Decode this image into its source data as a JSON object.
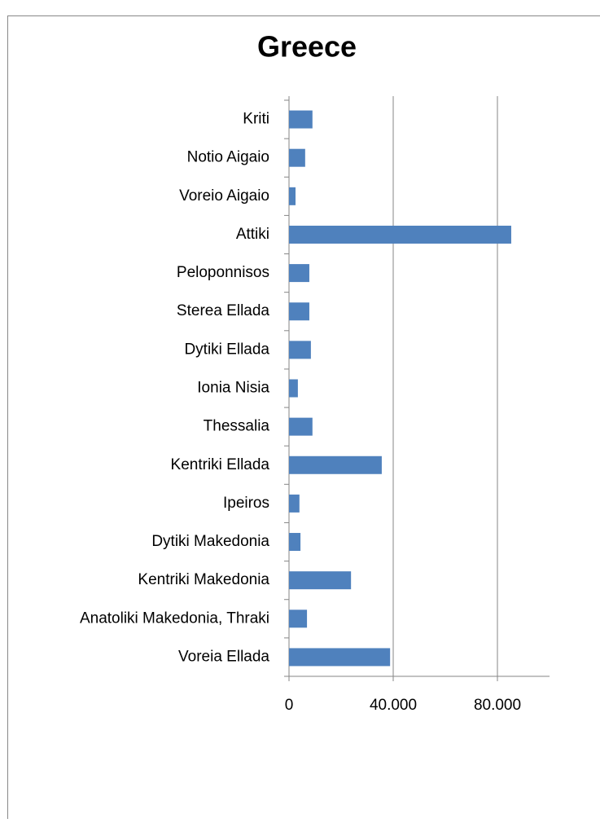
{
  "chart_data": {
    "type": "bar",
    "orientation": "horizontal",
    "title": "Greece",
    "categories": [
      "Kriti",
      "Notio Aigaio",
      "Voreio Aigaio",
      "Attiki",
      "Peloponnisos",
      "Sterea Ellada",
      "Dytiki Ellada",
      "Ionia Nisia",
      "Thessalia",
      "Kentriki Ellada",
      "Ipeiros",
      "Dytiki Makedonia",
      "Kentriki Makedonia",
      "Anatoliki Makedonia, Thraki",
      "Voreia Ellada"
    ],
    "values": [
      9000,
      6200,
      2500,
      85300,
      7800,
      7800,
      8400,
      3400,
      9000,
      35600,
      4000,
      4400,
      23800,
      6900,
      38800
    ],
    "color": "#4f81bd",
    "xlim": [
      0,
      100000
    ],
    "xticks": [
      0,
      {
        "value": 40000,
        "label": "40.000"
      },
      {
        "value": 80000,
        "label": "80.000"
      }
    ],
    "grid": true
  }
}
